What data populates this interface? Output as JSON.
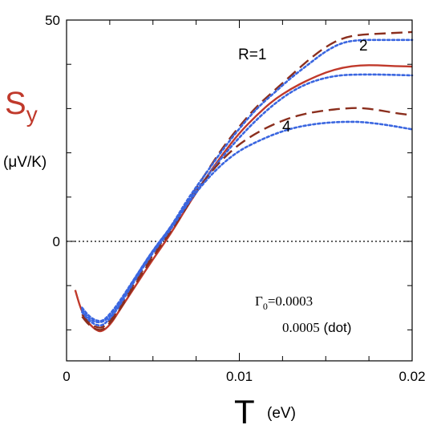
{
  "chart_data": {
    "type": "line",
    "xlabel": "T",
    "xunit": "(eV)",
    "ylabel_main": "S",
    "ylabel_sub": "y",
    "yunit": "(μV/K)",
    "xlim": [
      0,
      0.02
    ],
    "ylim": [
      -27,
      50
    ],
    "xticks": [
      0,
      0.01,
      0.02
    ],
    "xtick_labels": [
      "0",
      "0.01",
      "0.02"
    ],
    "yticks": [
      0,
      50
    ],
    "ytick_labels": [
      "0",
      "50"
    ],
    "zero_line": true,
    "colors": {
      "red": "#c0392b",
      "brown": "#8b2f1e",
      "blue": "#3a66e0",
      "ylabel": "#c0392b"
    },
    "annotations": {
      "r1": "R=1",
      "r2": "2",
      "r4": "4",
      "gamma_sym": "Γ",
      "gamma_sub": "0",
      "gamma_val": "=0.0003",
      "gamma2_val": "0.0005",
      "gamma2_note": " (dot)"
    },
    "series": [
      {
        "style": "solid",
        "color": "red",
        "x": [
          0.0005,
          0.0008,
          0.0011,
          0.0014,
          0.0017,
          0.002,
          0.0025,
          0.003,
          0.004,
          0.005,
          0.006,
          0.007,
          0.008,
          0.009,
          0.01,
          0.011,
          0.012,
          0.013,
          0.014,
          0.015,
          0.016,
          0.017,
          0.018,
          0.019,
          0.02
        ],
        "y": [
          -11,
          -15,
          -17.5,
          -19,
          -20,
          -20.5,
          -19,
          -16,
          -10,
          -4,
          1.5,
          8,
          14,
          19.5,
          24.5,
          28.5,
          32,
          34.5,
          36.5,
          38.2,
          39.3,
          39.8,
          39.8,
          39.6,
          39.5
        ]
      },
      {
        "style": "dash",
        "color": "brown",
        "x": [
          0.0009,
          0.0012,
          0.0015,
          0.0018,
          0.0021,
          0.0025,
          0.003,
          0.004,
          0.005,
          0.006,
          0.007,
          0.008,
          0.009,
          0.01,
          0.011,
          0.012,
          0.013,
          0.014,
          0.015,
          0.016,
          0.017,
          0.018,
          0.019,
          0.02
        ],
        "y": [
          -16.5,
          -18,
          -19,
          -19.5,
          -19.5,
          -18,
          -15.5,
          -9,
          -3,
          2.5,
          9,
          15,
          21,
          26,
          30.5,
          34,
          37.5,
          41,
          44,
          46,
          46.7,
          46.9,
          47.1,
          47.3
        ]
      },
      {
        "style": "dot",
        "color": "blue",
        "x": [
          0.0009,
          0.0012,
          0.0015,
          0.0018,
          0.0021,
          0.0025,
          0.003,
          0.004,
          0.005,
          0.006,
          0.007,
          0.008,
          0.009,
          0.01,
          0.011,
          0.012,
          0.013,
          0.014,
          0.015,
          0.016,
          0.017,
          0.018,
          0.019,
          0.02
        ],
        "y": [
          -15.5,
          -17,
          -18,
          -18.3,
          -18.2,
          -17,
          -14.5,
          -8,
          -2,
          3,
          9.5,
          15,
          20.5,
          25.5,
          30,
          33.5,
          37,
          40,
          43,
          45,
          45.5,
          45.5,
          45.5,
          45.5
        ]
      },
      {
        "style": "dot",
        "color": "blue",
        "x": [
          0.0009,
          0.0012,
          0.0015,
          0.0018,
          0.0021,
          0.0025,
          0.003,
          0.004,
          0.005,
          0.006,
          0.007,
          0.008,
          0.009,
          0.01,
          0.011,
          0.012,
          0.013,
          0.014,
          0.015,
          0.016,
          0.017,
          0.018,
          0.019,
          0.02
        ],
        "y": [
          -15,
          -16.5,
          -17.5,
          -18,
          -18,
          -16.5,
          -14,
          -8,
          -2,
          3,
          9,
          14,
          19,
          23.5,
          27.5,
          31,
          33.8,
          35.8,
          37,
          37.6,
          37.7,
          37.7,
          37.6,
          37.5
        ]
      },
      {
        "style": "dash",
        "color": "brown",
        "x": [
          0.0009,
          0.0012,
          0.0015,
          0.0018,
          0.0021,
          0.0025,
          0.003,
          0.004,
          0.005,
          0.006,
          0.007,
          0.008,
          0.009,
          0.01,
          0.011,
          0.012,
          0.013,
          0.014,
          0.015,
          0.016,
          0.017,
          0.018,
          0.019,
          0.02
        ],
        "y": [
          -17,
          -18.5,
          -19.5,
          -20,
          -20,
          -18.5,
          -16,
          -9.5,
          -3.5,
          2,
          8,
          14,
          18.5,
          22,
          24.5,
          26.5,
          28,
          29,
          29.6,
          30,
          30.2,
          29.7,
          29,
          28.5
        ]
      },
      {
        "style": "dot",
        "color": "blue",
        "x": [
          0.0009,
          0.0012,
          0.0015,
          0.0018,
          0.0021,
          0.0025,
          0.003,
          0.004,
          0.005,
          0.006,
          0.007,
          0.008,
          0.009,
          0.01,
          0.011,
          0.012,
          0.013,
          0.014,
          0.015,
          0.016,
          0.017,
          0.018,
          0.019,
          0.02
        ],
        "y": [
          -16,
          -17.5,
          -18.5,
          -19,
          -19,
          -17.5,
          -15,
          -8.5,
          -2.5,
          2.5,
          8.5,
          13.5,
          17.5,
          20.5,
          22.5,
          24.2,
          25.5,
          26.3,
          26.8,
          27,
          27,
          26.6,
          26,
          25.3
        ]
      }
    ]
  }
}
